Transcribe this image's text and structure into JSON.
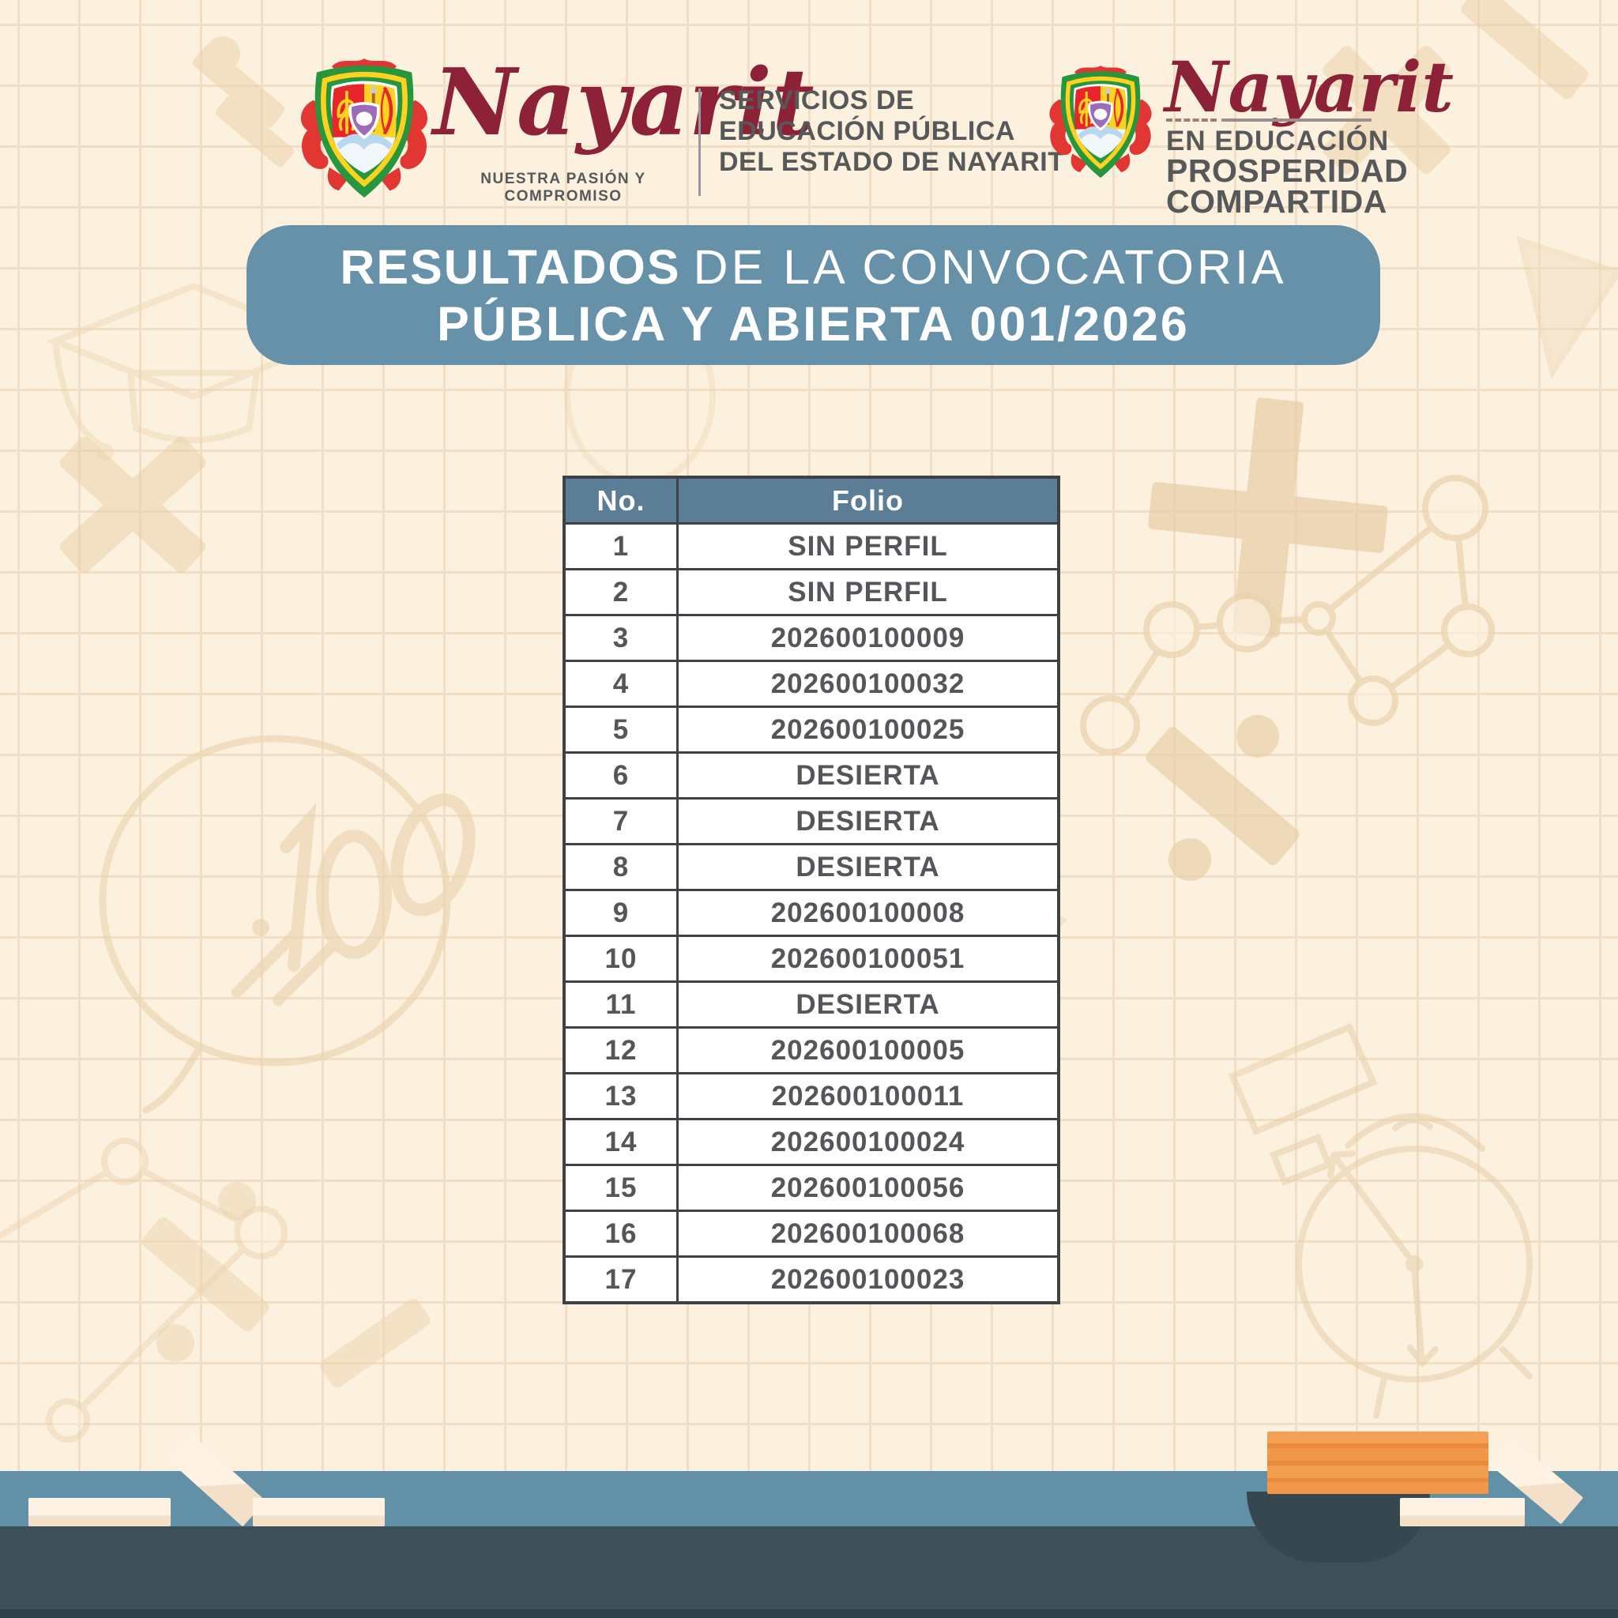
{
  "colors": {
    "background": "#fcf0de",
    "grid_line": "#f1dec5",
    "doodle": "#e9d2ae",
    "banner_bg": "#6691a8",
    "banner_text": "#ffffff",
    "table_header_bg": "#5b7e96",
    "table_border": "#3d4246",
    "table_cell_text": "#55565a",
    "brand_maroon": "#8c2137",
    "header_gray": "#57585a",
    "shelf_blue": "#6190a7",
    "desk_dark": "#3d4f58",
    "book_orange": "#f09749",
    "chalk_cream": "#fdf2e4"
  },
  "header": {
    "left_logo": {
      "brand": "Nayarit",
      "tagline": "NUESTRA PASIÓN Y COMPROMISO",
      "emblem": "nayarit-coat-of-arms-icon"
    },
    "org_lines": [
      "SERVICIOS DE",
      "EDUCACIÓN PÚBLICA",
      "DEL ESTADO DE NAYARIT"
    ],
    "right_logo": {
      "brand": "Nayarit",
      "lines": [
        "EN EDUCACIÓN",
        "PROSPERIDAD",
        "COMPARTIDA"
      ],
      "emblem": "nayarit-coat-of-arms-icon"
    }
  },
  "banner": {
    "line1_emphasis": "RESULTADOS",
    "line1_rest": "DE LA CONVOCATORIA",
    "line2": "PÚBLICA Y ABIERTA 001/2026"
  },
  "table": {
    "columns": [
      "No.",
      "Folio"
    ],
    "rows": [
      [
        "1",
        "SIN PERFIL"
      ],
      [
        "2",
        "SIN PERFIL"
      ],
      [
        "3",
        "202600100009"
      ],
      [
        "4",
        "202600100032"
      ],
      [
        "5",
        "202600100025"
      ],
      [
        "6",
        "DESIERTA"
      ],
      [
        "7",
        "DESIERTA"
      ],
      [
        "8",
        "DESIERTA"
      ],
      [
        "9",
        "202600100008"
      ],
      [
        "10",
        "202600100051"
      ],
      [
        "11",
        "DESIERTA"
      ],
      [
        "12",
        "202600100005"
      ],
      [
        "13",
        "202600100011"
      ],
      [
        "14",
        "202600100024"
      ],
      [
        "15",
        "202600100056"
      ],
      [
        "16",
        "202600100068"
      ],
      [
        "17",
        "202600100023"
      ]
    ]
  },
  "background_doodles": [
    "graduation-cap-icon",
    "multiplication-sign-icon",
    "plus-sign-icon",
    "division-sign-icon",
    "hundred-percent-bubble-icon",
    "dot-graph-icon",
    "alarm-clock-icon",
    "paper-plane-icon",
    "pencil-icon",
    "balloon-icon"
  ],
  "footer_decorations": [
    "chalk-pieces-icon",
    "book-stack-icon"
  ]
}
